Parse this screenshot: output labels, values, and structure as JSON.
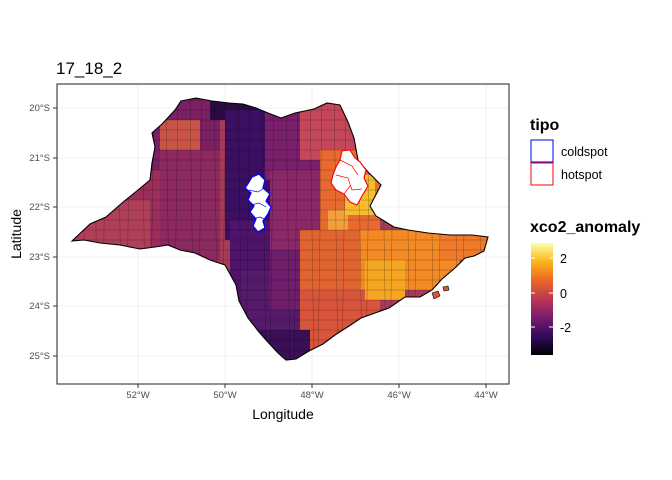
{
  "chart_data": {
    "type": "choropleth",
    "title": "17_18_2",
    "xlabel": "Longitude",
    "ylabel": "Latitude",
    "x_ticks": [
      "52°W",
      "50°W",
      "48°W",
      "46°W",
      "44°W"
    ],
    "y_ticks": [
      "20°S",
      "21°S",
      "22°S",
      "23°S",
      "24°S",
      "25°S"
    ],
    "grid": true,
    "legend_position": "right",
    "legend_tipo": {
      "title": "tipo",
      "entries": [
        {
          "label": "coldspot",
          "color": "#0000FF"
        },
        {
          "label": "hotspot",
          "color": "#FF0000"
        }
      ]
    },
    "legend_colorbar": {
      "title": "xco2_anomaly",
      "palette": "inferno",
      "tick_labels": [
        "2",
        "0",
        "-2"
      ],
      "range": [
        -3.6,
        3.1
      ],
      "colors": [
        "#000004",
        "#320A5E",
        "#781B6C",
        "#BB3754",
        "#EC6824",
        "#FBB41A",
        "#FCFFA4"
      ]
    }
  }
}
